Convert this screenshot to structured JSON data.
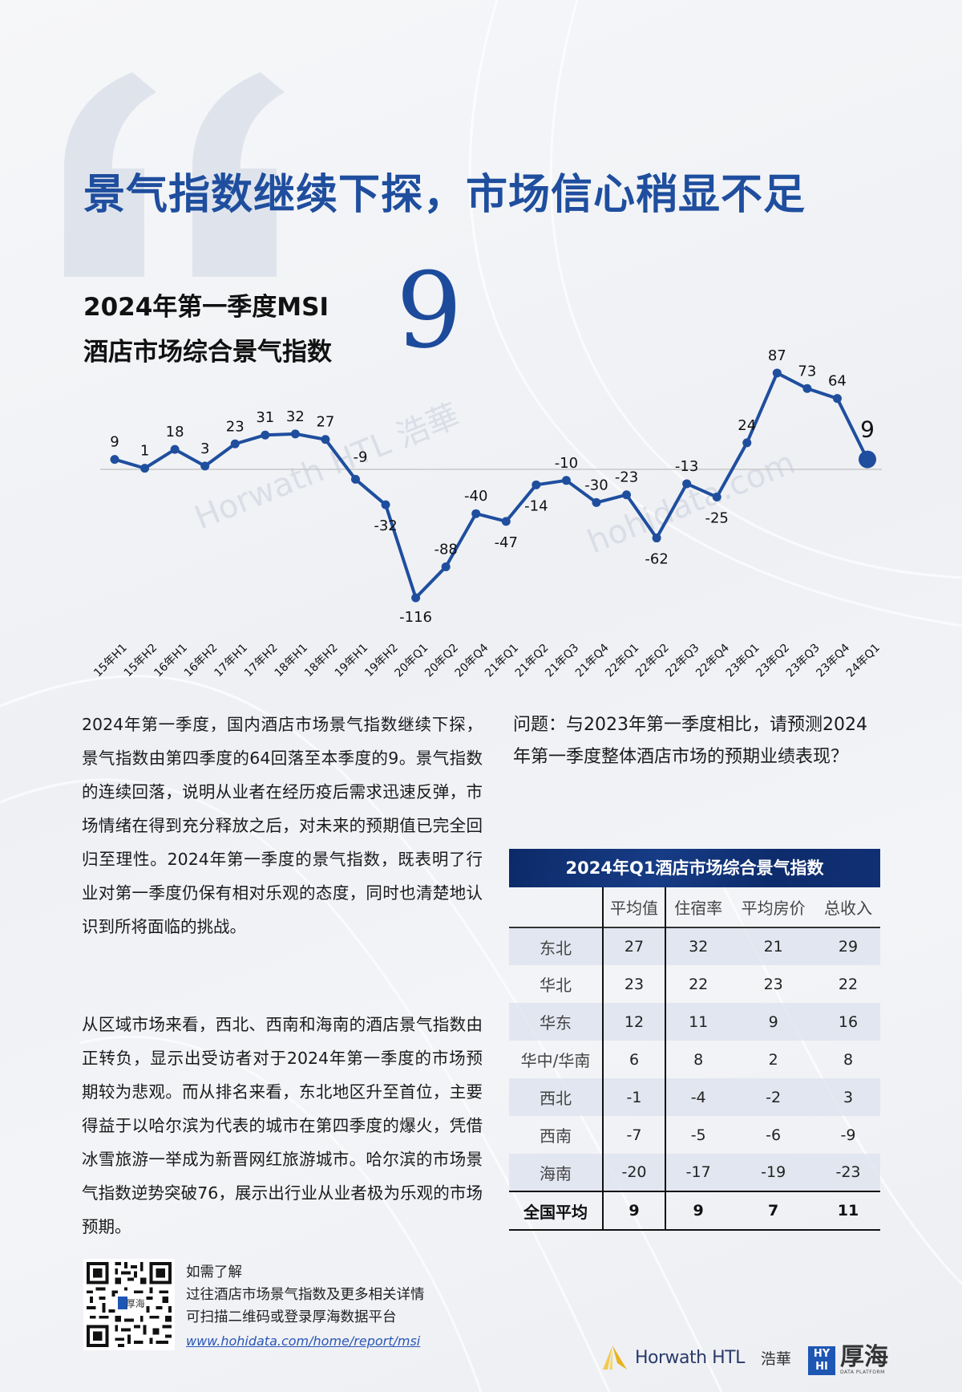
{
  "headline": "景气指数继续下探，市场信心稍显不足",
  "msi": {
    "label_line1": "2024年第一季度MSI",
    "label_line2": "酒店市场综合景气指数",
    "value": "9"
  },
  "chart_data": {
    "type": "line",
    "title": "2024年第一季度MSI 酒店市场综合景气指数",
    "categories": [
      "15年H1",
      "15年H2",
      "16年H1",
      "16年H2",
      "17年H1",
      "17年H2",
      "18年H1",
      "18年H2",
      "19年H1",
      "19年H2",
      "20年Q1",
      "20年Q2",
      "20年Q4",
      "21年Q1",
      "21年Q2",
      "21年Q3",
      "21年Q4",
      "22年Q1",
      "22年Q2",
      "22年Q3",
      "22年Q4",
      "23年Q1",
      "23年Q2",
      "23年Q3",
      "23年Q4",
      "24年Q1"
    ],
    "values": [
      9,
      1,
      18,
      3,
      23,
      31,
      32,
      27,
      -9,
      -32,
      -116,
      -88,
      -40,
      -47,
      -14,
      -10,
      -30,
      -23,
      -62,
      -13,
      -25,
      24,
      87,
      73,
      64,
      9
    ],
    "series": [
      {
        "name": "酒店市场综合景气指数",
        "color": "#1f4e9e"
      }
    ],
    "xlabel": "",
    "ylabel": "",
    "ylim": [
      -120,
      90
    ],
    "baseline": 0,
    "grid": false,
    "legend": "none",
    "highlight_last": true
  },
  "paragraph1": "2024年第一季度，国内酒店市场景气指数继续下探，景气指数由第四季度的64回落至本季度的9。景气指数的连续回落，说明从业者在经历疫后需求迅速反弹，市场情绪在得到充分释放之后，对未来的预期值已完全回归至理性。2024年第一季度的景气指数，既表明了行业对第一季度仍保有相对乐观的态度，同时也清楚地认识到所将面临的挑战。",
  "paragraph2": "从区域市场来看，西北、西南和海南的酒店景气指数由正转负，显示出受访者对于2024年第一季度的市场预期较为悲观。而从排名来看，东北地区升至首位，主要得益于以哈尔滨为代表的城市在第四季度的爆火，凭借冰雪旅游一举成为新晋网红旅游城市。哈尔滨的市场景气指数逆势突破76，展示出行业从业者极为乐观的市场预期。",
  "question": "问题：与2023年第一季度相比，请预测2024年第一季度整体酒店市场的预期业绩表现？",
  "table": {
    "title": "2024年Q1酒店市场综合景气指数",
    "headers": [
      "",
      "平均值",
      "住宿率",
      "平均房价",
      "总收入"
    ],
    "rows": [
      {
        "region": "东北",
        "avg": "27",
        "occ": "32",
        "adr": "21",
        "rev": "29"
      },
      {
        "region": "华北",
        "avg": "23",
        "occ": "22",
        "adr": "23",
        "rev": "22"
      },
      {
        "region": "华东",
        "avg": "12",
        "occ": "11",
        "adr": "9",
        "rev": "16"
      },
      {
        "region": "华中/华南",
        "avg": "6",
        "occ": "8",
        "adr": "2",
        "rev": "8"
      },
      {
        "region": "西北",
        "avg": "-1",
        "occ": "-4",
        "adr": "-2",
        "rev": "3"
      },
      {
        "region": "西南",
        "avg": "-7",
        "occ": "-5",
        "adr": "-6",
        "rev": "-9"
      },
      {
        "region": "海南",
        "avg": "-20",
        "occ": "-17",
        "adr": "-19",
        "rev": "-23"
      }
    ],
    "total": {
      "region": "全国平均",
      "avg": "9",
      "occ": "9",
      "adr": "7",
      "rev": "11"
    }
  },
  "footer": {
    "line1": "如需了解",
    "line2": "过往酒店市场景气指数及更多相关详情",
    "line3": "可扫描二维码或登录厚海数据平台",
    "link": "www.hohidata.com/home/report/msi",
    "qr_badge": "厚海"
  },
  "logos": {
    "horwath": "Horwath HTL",
    "horwath_cn": "浩華",
    "hohi_box": "HY HI",
    "hohi_cn": "厚海",
    "hohi_sub": "DATA PLATFORM"
  },
  "watermarks": [
    "Horwath HTL 浩華",
    "hohidata.com"
  ],
  "colors": {
    "primary_blue": "#1f4e9e",
    "table_header": "#0f2e70",
    "link": "#2a56b8"
  }
}
